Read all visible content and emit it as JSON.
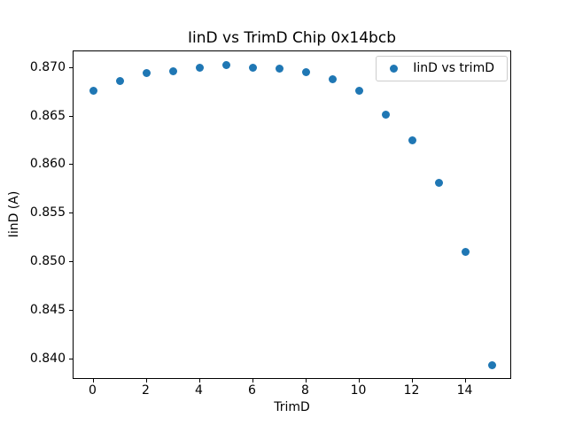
{
  "chart_data": {
    "type": "scatter",
    "title": "IinD vs TrimD Chip 0x14bcb",
    "xlabel": "TrimD",
    "ylabel": "IinD (A)",
    "legend": {
      "label": "IinD vs trimD",
      "position": "upper right"
    },
    "x": [
      0,
      1,
      2,
      3,
      4,
      5,
      6,
      7,
      8,
      9,
      10,
      11,
      12,
      13,
      14,
      15
    ],
    "y": [
      0.8676,
      0.8686,
      0.8694,
      0.8696,
      0.87,
      0.8702,
      0.87,
      0.8699,
      0.8695,
      0.8688,
      0.8676,
      0.8651,
      0.8625,
      0.8581,
      0.851,
      0.8394
    ],
    "series_name": "IinD vs trimD",
    "xlim": [
      -0.75,
      15.75
    ],
    "ylim": [
      0.8379,
      0.8717
    ],
    "xticks": [
      0,
      2,
      4,
      6,
      8,
      10,
      12,
      14
    ],
    "yticks": [
      0.84,
      0.845,
      0.85,
      0.855,
      0.86,
      0.865,
      0.87
    ],
    "ytick_decimals": 3,
    "grid": false,
    "marker_color": "#1f77b4",
    "spine_color": "#000000",
    "background_color": "#ffffff"
  }
}
